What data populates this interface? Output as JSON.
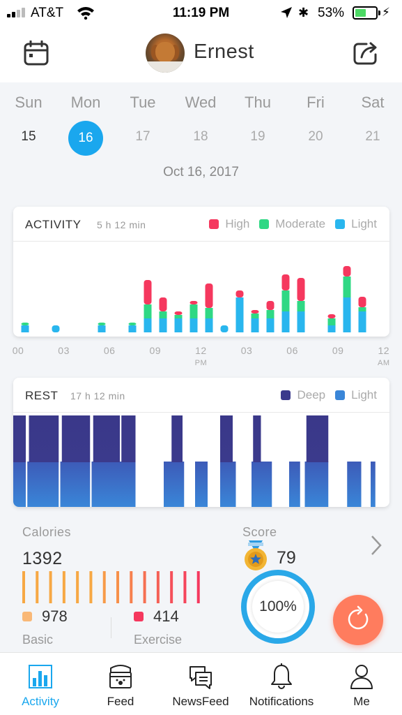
{
  "status_bar": {
    "carrier": "AT&T",
    "time": "11:19 PM",
    "battery_percent": "53%"
  },
  "header": {
    "name": "Ernest",
    "left_icon": "calendar-icon",
    "right_icon": "share-icon"
  },
  "week": {
    "days": [
      {
        "name": "Sun",
        "num": "15",
        "state": "past"
      },
      {
        "name": "Mon",
        "num": "16",
        "state": "selected"
      },
      {
        "name": "Tue",
        "num": "17",
        "state": "future"
      },
      {
        "name": "Wed",
        "num": "18",
        "state": "future"
      },
      {
        "name": "Thu",
        "num": "19",
        "state": "future"
      },
      {
        "name": "Fri",
        "num": "20",
        "state": "future"
      },
      {
        "name": "Sat",
        "num": "21",
        "state": "future"
      }
    ],
    "date_label": "Oct 16, 2017"
  },
  "activity": {
    "title": "ACTIVITY",
    "duration": "5 h 12 min",
    "legend": [
      {
        "label": "High",
        "color": "#f5385e"
      },
      {
        "label": "Moderate",
        "color": "#2fd884"
      },
      {
        "label": "Light",
        "color": "#29b6ee"
      }
    ]
  },
  "axis": {
    "ticks": [
      "00",
      "03",
      "06",
      "09",
      "12",
      "03",
      "06",
      "09",
      "12"
    ],
    "sub": [
      "",
      "",
      "",
      "",
      "PM",
      "",
      "",
      "",
      "AM"
    ]
  },
  "rest": {
    "title": "REST",
    "duration": "17 h 12 min",
    "legend": [
      {
        "label": "Deep",
        "color": "#3b3a8c"
      },
      {
        "label": "Light",
        "color": "#3a86d8"
      }
    ]
  },
  "chart_data": [
    {
      "type": "bar",
      "title": "ACTIVITY",
      "x_unit": "hour of day",
      "x": [
        0.5,
        2.5,
        5.5,
        7.5,
        8.5,
        9.5,
        10.5,
        11.5,
        12.5,
        13.5,
        14.5,
        15.5,
        16.5,
        17.5,
        18.5,
        20.5,
        21.5,
        22.5
      ],
      "series": [
        {
          "name": "Light",
          "color": "#29b6ee",
          "values": [
            1,
            1,
            1,
            1,
            2,
            2,
            2,
            2,
            2,
            1,
            5,
            2,
            2,
            3,
            3,
            1,
            5,
            3
          ]
        },
        {
          "name": "Moderate",
          "color": "#2fd884",
          "values": [
            0.4,
            0,
            0.4,
            0.4,
            2,
            1,
            0.5,
            2,
            1.5,
            0,
            0,
            0.7,
            1.2,
            3,
            1.5,
            1,
            3,
            0.6
          ]
        },
        {
          "name": "High",
          "color": "#f5385e",
          "values": [
            0,
            0,
            0,
            0,
            3.5,
            2,
            0.5,
            0.5,
            3.5,
            0,
            1,
            0.5,
            1.3,
            2.3,
            3.3,
            0.6,
            1.5,
            1.5
          ]
        }
      ],
      "xlim": [
        0,
        24
      ],
      "x_tick_labels": [
        "00",
        "03",
        "06",
        "09",
        "12",
        "03",
        "06",
        "09",
        "12"
      ],
      "legend_position": "top-right"
    },
    {
      "type": "bar",
      "title": "REST",
      "x_unit": "hour of day",
      "series": [
        {
          "name": "Deep",
          "color": "#3b3a8c",
          "segments": [
            [
              0.0,
              0.8
            ],
            [
              1.0,
              2.9
            ],
            [
              3.1,
              4.9
            ],
            [
              5.1,
              6.8
            ],
            [
              6.9,
              7.8
            ],
            [
              10.1,
              10.8
            ],
            [
              13.2,
              14.0
            ],
            [
              15.3,
              15.8
            ],
            [
              18.7,
              20.1
            ]
          ]
        },
        {
          "name": "Light",
          "color": "#3a86d8",
          "segments": [
            [
              0.0,
              0.8
            ],
            [
              0.9,
              2.9
            ],
            [
              3.0,
              4.9
            ],
            [
              5.0,
              7.8
            ],
            [
              9.6,
              10.9
            ],
            [
              11.6,
              12.4
            ],
            [
              13.2,
              14.2
            ],
            [
              15.2,
              16.5
            ],
            [
              17.6,
              18.3
            ],
            [
              18.6,
              20.1
            ],
            [
              21.3,
              22.2
            ],
            [
              22.8,
              23.1
            ]
          ]
        }
      ],
      "xlim": [
        0,
        24
      ],
      "legend_position": "top-right"
    },
    {
      "type": "bar",
      "title": "Calories",
      "values": [
        1,
        1,
        1,
        1,
        1,
        1,
        1,
        1,
        1,
        1,
        1,
        1,
        1,
        1
      ],
      "colors": [
        "#f7a844",
        "#f7a844",
        "#f7a844",
        "#f7a844",
        "#f7a844",
        "#f7a844",
        "#f79a48",
        "#f7904a",
        "#f7804e",
        "#f57052",
        "#f56056",
        "#f5505a",
        "#f5455c",
        "#f5385e"
      ]
    }
  ],
  "calories": {
    "label": "Calories",
    "value": "1392",
    "basic_value": "978",
    "basic_label": "Basic",
    "basic_color": "#f9b877",
    "exercise_value": "414",
    "exercise_label": "Exercise",
    "exercise_color": "#f5385e"
  },
  "score": {
    "label": "Score",
    "value": "79",
    "percent": "100%",
    "medal_icon": "medal-icon"
  },
  "tabs": [
    {
      "label": "Activity",
      "icon": "bar-chart-icon",
      "active": true
    },
    {
      "label": "Feed",
      "icon": "food-bowl-icon",
      "active": false
    },
    {
      "label": "NewsFeed",
      "icon": "chat-icon",
      "active": false
    },
    {
      "label": "Notifications",
      "icon": "bell-icon",
      "active": false
    },
    {
      "label": "Me",
      "icon": "person-icon",
      "active": false
    }
  ]
}
